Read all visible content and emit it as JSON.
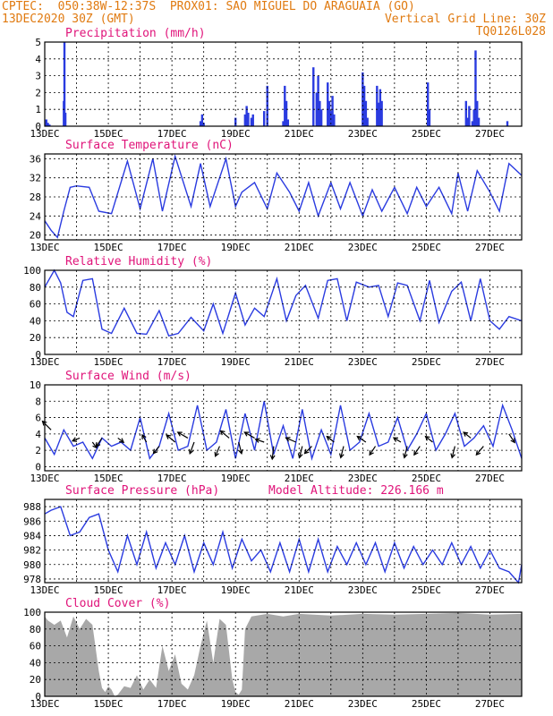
{
  "header": {
    "line1_left": "CPTEC:  050:38W-12:37S  PROX01: SAO MIGUEL DO ARAGUAIA (GO)",
    "line2_left": "13DEC2020 30Z (GMT)",
    "line2_right": "Vertical Grid Line: 30Z",
    "line3_right": "TQ0126L028"
  },
  "colors": {
    "title": "#e0147a",
    "header": "#e07a10",
    "line": "#2a3be0",
    "grid": "#000000",
    "cloud": "#a8a8a8"
  },
  "x_labels": [
    "13DEC",
    "15DEC",
    "17DEC",
    "19DEC",
    "21DEC",
    "23DEC",
    "25DEC",
    "27DEC"
  ],
  "chart_data": [
    {
      "id": "precip",
      "type": "bar",
      "title": "Precipitation (mm/h)",
      "xlim": [
        0,
        15
      ],
      "ylim": [
        0,
        5
      ],
      "yticks": [
        0,
        1,
        2,
        3,
        4,
        5
      ],
      "x": [
        0.05,
        0.1,
        0.15,
        0.6,
        0.62,
        0.65,
        4.9,
        4.95,
        5.0,
        6.0,
        6.3,
        6.35,
        6.4,
        6.5,
        6.55,
        6.9,
        7.0,
        7.5,
        7.55,
        7.6,
        7.65,
        8.45,
        8.55,
        8.6,
        8.65,
        8.7,
        8.9,
        8.95,
        9.0,
        9.05,
        9.1,
        10.0,
        10.05,
        10.1,
        10.15,
        10.45,
        10.5,
        10.55,
        10.6,
        12.05,
        12.1,
        13.25,
        13.3,
        13.35,
        13.45,
        13.5,
        13.55,
        13.6,
        13.65,
        14.55
      ],
      "values": [
        0.4,
        0.2,
        0.1,
        1.5,
        5.0,
        0.8,
        0.3,
        0.7,
        0.2,
        0.5,
        0.7,
        1.2,
        0.8,
        0.5,
        0.7,
        0.9,
        2.4,
        0.3,
        2.4,
        1.5,
        0.4,
        3.5,
        2.0,
        3.0,
        1.5,
        1.0,
        2.6,
        1.5,
        0.9,
        1.8,
        0.7,
        3.2,
        2.4,
        1.5,
        0.5,
        2.4,
        1.4,
        2.2,
        1.5,
        2.6,
        1.0,
        1.5,
        0.5,
        1.2,
        0.3,
        1.0,
        4.5,
        1.5,
        0.5,
        0.3
      ]
    },
    {
      "id": "temp",
      "type": "line",
      "title": "Surface Temperature (nC)",
      "xlim": [
        0,
        15
      ],
      "ylim": [
        19,
        37
      ],
      "yticks": [
        20,
        24,
        28,
        32,
        36
      ],
      "x": [
        0,
        0.2,
        0.4,
        0.6,
        0.8,
        1.0,
        1.4,
        1.7,
        2.1,
        2.6,
        3.0,
        3.4,
        3.7,
        4.1,
        4.6,
        4.9,
        5.2,
        5.7,
        6.0,
        6.2,
        6.6,
        7.0,
        7.3,
        7.7,
        8.0,
        8.3,
        8.6,
        9.0,
        9.3,
        9.6,
        10.0,
        10.3,
        10.6,
        11.0,
        11.4,
        11.7,
        12.0,
        12.4,
        12.8,
        13.0,
        13.3,
        13.6,
        14.0,
        14.3,
        14.6,
        15.0
      ],
      "values": [
        23,
        21,
        19.5,
        25,
        30,
        30.3,
        30,
        25,
        24.5,
        35.5,
        25.5,
        36,
        25,
        36.5,
        26,
        35,
        26,
        36,
        26,
        29,
        31,
        25.5,
        33,
        29,
        25,
        31,
        24,
        31,
        25.5,
        31,
        24,
        29.5,
        25,
        30,
        24.5,
        30,
        26,
        30,
        24.5,
        33,
        25,
        33.5,
        29,
        25,
        35,
        32.5
      ]
    },
    {
      "id": "rh",
      "type": "line",
      "title": "Relative Humidity (%)",
      "xlim": [
        0,
        15
      ],
      "ylim": [
        0,
        100
      ],
      "yticks": [
        0,
        20,
        40,
        60,
        80,
        100
      ],
      "x": [
        0,
        0.3,
        0.5,
        0.7,
        0.9,
        1.2,
        1.5,
        1.8,
        2.1,
        2.5,
        2.9,
        3.2,
        3.6,
        3.9,
        4.2,
        4.6,
        5.0,
        5.3,
        5.6,
        6.0,
        6.3,
        6.6,
        6.9,
        7.3,
        7.6,
        7.9,
        8.2,
        8.6,
        8.9,
        9.2,
        9.5,
        9.8,
        10.2,
        10.5,
        10.8,
        11.1,
        11.4,
        11.8,
        12.1,
        12.4,
        12.8,
        13.1,
        13.4,
        13.7,
        14.0,
        14.3,
        14.6,
        15.0
      ],
      "values": [
        80,
        100,
        85,
        50,
        45,
        88,
        90,
        30,
        25,
        55,
        25,
        24,
        52,
        22,
        25,
        44,
        28,
        60,
        25,
        73,
        35,
        55,
        45,
        90,
        40,
        70,
        82,
        43,
        88,
        90,
        40,
        86,
        80,
        82,
        45,
        85,
        82,
        40,
        88,
        38,
        75,
        86,
        40,
        90,
        40,
        30,
        45,
        40
      ]
    },
    {
      "id": "wind",
      "type": "line",
      "title": "Surface Wind (m/s)",
      "xlim": [
        0,
        15
      ],
      "ylim": [
        -0.5,
        10
      ],
      "yticks": [
        0,
        2,
        4,
        6,
        8,
        10
      ],
      "x": [
        0,
        0.3,
        0.6,
        0.9,
        1.2,
        1.5,
        1.8,
        2.1,
        2.4,
        2.7,
        3.0,
        3.3,
        3.6,
        3.9,
        4.2,
        4.5,
        4.8,
        5.1,
        5.4,
        5.7,
        6.0,
        6.3,
        6.6,
        6.9,
        7.2,
        7.5,
        7.8,
        8.1,
        8.4,
        8.7,
        9.0,
        9.3,
        9.6,
        9.9,
        10.2,
        10.5,
        10.8,
        11.1,
        11.4,
        11.7,
        12.0,
        12.3,
        12.6,
        12.9,
        13.2,
        13.5,
        13.8,
        14.1,
        14.4,
        14.7,
        15.0
      ],
      "values": [
        3.5,
        1.5,
        4.5,
        2.5,
        3.0,
        1.0,
        3.5,
        2.5,
        3.0,
        2.0,
        6.0,
        1.0,
        2.5,
        6.5,
        2.0,
        2.5,
        7.5,
        2.0,
        3.0,
        7.0,
        1.0,
        6.5,
        2.0,
        8.0,
        1.5,
        5.0,
        1.0,
        7.0,
        1.0,
        4.5,
        1.5,
        7.5,
        2.0,
        3.0,
        6.5,
        2.5,
        3.0,
        6.0,
        2.0,
        4.0,
        6.5,
        2.0,
        4.0,
        6.5,
        2.5,
        3.5,
        5.0,
        2.5,
        7.5,
        4.5,
        1.0
      ],
      "arrows": [
        {
          "x": 0.2,
          "speed": 4.5,
          "dx": -0.6,
          "dy": 0.6
        },
        {
          "x": 1.1,
          "speed": 3.5,
          "dx": -0.5,
          "dy": -0.2
        },
        {
          "x": 1.5,
          "speed": 3.0,
          "dx": 0.3,
          "dy": -0.4
        },
        {
          "x": 1.8,
          "speed": 3.5,
          "dx": -0.4,
          "dy": -0.6
        },
        {
          "x": 2.3,
          "speed": 3.5,
          "dx": 0.4,
          "dy": -0.3
        },
        {
          "x": 3.2,
          "speed": 3.0,
          "dx": -0.3,
          "dy": 0.5
        },
        {
          "x": 3.6,
          "speed": 2.5,
          "dx": -0.4,
          "dy": -0.5
        },
        {
          "x": 4.1,
          "speed": 3.0,
          "dx": -0.6,
          "dy": 0.5
        },
        {
          "x": 4.5,
          "speed": 3.5,
          "dx": -0.7,
          "dy": 0.4
        },
        {
          "x": 4.7,
          "speed": 3.0,
          "dx": -0.3,
          "dy": -0.8
        },
        {
          "x": 5.5,
          "speed": 2.5,
          "dx": -0.3,
          "dy": -0.7
        },
        {
          "x": 5.8,
          "speed": 3.5,
          "dx": -0.6,
          "dy": 0.5
        },
        {
          "x": 6.1,
          "speed": 3.0,
          "dx": 0.2,
          "dy": -0.8
        },
        {
          "x": 6.6,
          "speed": 3.5,
          "dx": -0.7,
          "dy": 0.4
        },
        {
          "x": 6.9,
          "speed": 3.0,
          "dx": -0.6,
          "dy": 0.2
        },
        {
          "x": 7.2,
          "speed": 2.5,
          "dx": -0.1,
          "dy": -0.9
        },
        {
          "x": 7.9,
          "speed": 3.0,
          "dx": -0.7,
          "dy": 0.3
        },
        {
          "x": 8.1,
          "speed": 2.5,
          "dx": -0.2,
          "dy": -0.8
        },
        {
          "x": 8.4,
          "speed": 2.5,
          "dx": -0.5,
          "dy": -0.5
        },
        {
          "x": 9.1,
          "speed": 3.0,
          "dx": -0.5,
          "dy": 0.4
        },
        {
          "x": 9.4,
          "speed": 2.5,
          "dx": -0.2,
          "dy": -0.8
        },
        {
          "x": 10.1,
          "speed": 3.0,
          "dx": -0.6,
          "dy": 0.4
        },
        {
          "x": 10.4,
          "speed": 2.5,
          "dx": -0.4,
          "dy": -0.6
        },
        {
          "x": 11.2,
          "speed": 3.0,
          "dx": -0.5,
          "dy": 0.3
        },
        {
          "x": 11.4,
          "speed": 2.5,
          "dx": -0.2,
          "dy": -0.8
        },
        {
          "x": 11.8,
          "speed": 2.5,
          "dx": -0.4,
          "dy": -0.6
        },
        {
          "x": 12.2,
          "speed": 3.0,
          "dx": -0.5,
          "dy": 0.4
        },
        {
          "x": 12.9,
          "speed": 2.5,
          "dx": -0.2,
          "dy": -0.8
        },
        {
          "x": 13.4,
          "speed": 3.5,
          "dx": -0.5,
          "dy": 0.4
        },
        {
          "x": 13.8,
          "speed": 2.5,
          "dx": -0.5,
          "dy": -0.6
        },
        {
          "x": 14.6,
          "speed": 4.0,
          "dx": 0.4,
          "dy": -0.6
        }
      ]
    },
    {
      "id": "press",
      "type": "line",
      "title": "Surface Pressure (hPa)",
      "subtitle": "Model Altitude: 226.166 m",
      "xlim": [
        0,
        15
      ],
      "ylim": [
        977.5,
        989
      ],
      "yticks": [
        978,
        980,
        982,
        984,
        986,
        988
      ],
      "x": [
        0,
        0.2,
        0.5,
        0.8,
        1.1,
        1.4,
        1.7,
        2.0,
        2.3,
        2.6,
        2.9,
        3.2,
        3.5,
        3.8,
        4.1,
        4.4,
        4.7,
        5.0,
        5.3,
        5.6,
        5.9,
        6.2,
        6.5,
        6.8,
        7.1,
        7.4,
        7.7,
        8.0,
        8.3,
        8.6,
        8.9,
        9.2,
        9.5,
        9.8,
        10.1,
        10.4,
        10.7,
        11.0,
        11.3,
        11.6,
        11.9,
        12.2,
        12.5,
        12.8,
        13.1,
        13.4,
        13.7,
        14.0,
        14.3,
        14.6,
        14.9,
        15.0
      ],
      "values": [
        987,
        987.5,
        988,
        984,
        984.5,
        986.5,
        987,
        982,
        979,
        984,
        980,
        984.5,
        979.5,
        983,
        980,
        984,
        979,
        983,
        980,
        984.5,
        979.5,
        983.5,
        980.5,
        982,
        979,
        983,
        979,
        983.5,
        979,
        983.5,
        979,
        982.5,
        980,
        983,
        980,
        983,
        979,
        983,
        979.5,
        982.5,
        980,
        982,
        980,
        983,
        980,
        982.5,
        979.5,
        982,
        979.5,
        979,
        977.5,
        980
      ]
    },
    {
      "id": "cloud",
      "type": "area",
      "title": "Cloud Cover (%)",
      "xlim": [
        0,
        15
      ],
      "ylim": [
        0,
        100
      ],
      "yticks": [
        0,
        20,
        40,
        60,
        80,
        100
      ],
      "x": [
        0,
        0.1,
        0.3,
        0.5,
        0.7,
        0.9,
        1.1,
        1.3,
        1.5,
        1.7,
        1.8,
        1.9,
        2.0,
        2.1,
        2.2,
        2.3,
        2.5,
        2.7,
        2.9,
        3.1,
        3.3,
        3.5,
        3.7,
        3.9,
        4.1,
        4.3,
        4.5,
        4.7,
        4.9,
        5.1,
        5.3,
        5.5,
        5.7,
        5.9,
        6.0,
        6.1,
        6.2,
        6.3,
        6.5,
        7.0,
        7.5,
        8.0,
        9.0,
        10.0,
        11.0,
        12.0,
        13.0,
        14.0,
        15.0
      ],
      "values": [
        95,
        90,
        85,
        90,
        70,
        95,
        80,
        92,
        85,
        30,
        10,
        5,
        12,
        8,
        0,
        2,
        12,
        10,
        25,
        8,
        20,
        10,
        60,
        30,
        50,
        15,
        8,
        25,
        60,
        90,
        40,
        92,
        85,
        20,
        5,
        2,
        8,
        80,
        95,
        98,
        95,
        98,
        96,
        98,
        97,
        98,
        99,
        97,
        98
      ]
    }
  ]
}
